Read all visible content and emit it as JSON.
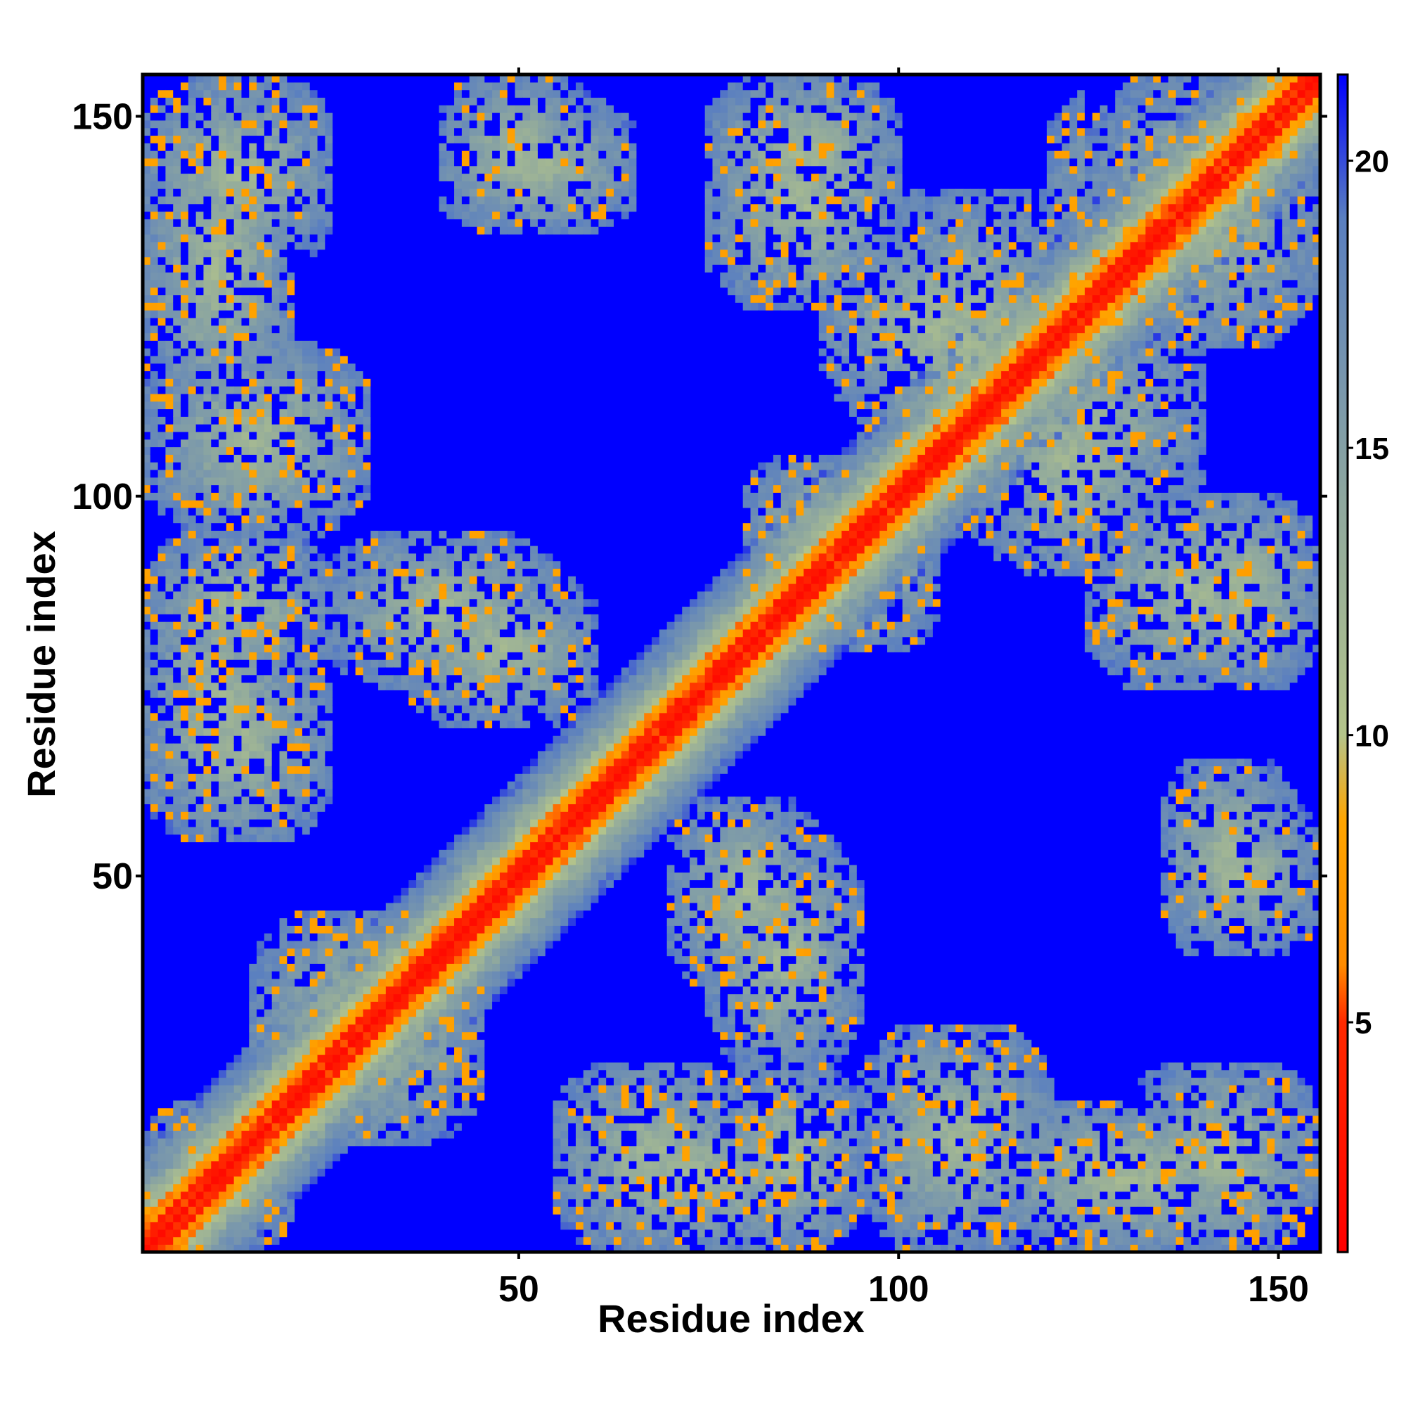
{
  "chart_data": {
    "type": "heatmap",
    "title": "",
    "xlabel": "Residue index",
    "ylabel": "Residue index",
    "xlim": [
      1,
      155
    ],
    "ylim": [
      1,
      155
    ],
    "x_ticks": [
      50,
      100,
      150
    ],
    "y_ticks": [
      50,
      100,
      150
    ],
    "n_residues": 155,
    "grid": false,
    "colorbar": {
      "position": "right",
      "range": [
        1,
        21.5
      ],
      "ticks": [
        5,
        10,
        15,
        20
      ],
      "colors": [
        "#ff0000",
        "#ff2a00",
        "#ff8c00",
        "#ffa500",
        "#b4c48a",
        "#8fa89e",
        "#5a7fc0",
        "#0000ff"
      ],
      "stops": [
        1,
        5,
        6,
        8.5,
        10,
        14,
        19,
        21.5
      ]
    },
    "value_model": "CA distance map (Angstrom), symmetric; values capped at ~21; red along diagonal (near contacts), orange/green in contact patches, blue = far",
    "diagonal": {
      "width": 3,
      "band_green_width": 12
    },
    "contact_regions": [
      {
        "x": [
          1,
          20
        ],
        "y": [
          1,
          20
        ]
      },
      {
        "x": [
          1,
          20
        ],
        "y": [
          55,
          90
        ]
      },
      {
        "x": [
          1,
          20
        ],
        "y": [
          110,
          150
        ]
      },
      {
        "x": [
          15,
          45
        ],
        "y": [
          15,
          45
        ]
      },
      {
        "x": [
          25,
          55
        ],
        "y": [
          75,
          95
        ]
      },
      {
        "x": [
          40,
          65
        ],
        "y": [
          135,
          152
        ]
      },
      {
        "x": [
          55,
          80
        ],
        "y": [
          1,
          25
        ]
      },
      {
        "x": [
          70,
          90
        ],
        "y": [
          35,
          60
        ]
      },
      {
        "x": [
          75,
          95
        ],
        "y": [
          1,
          25
        ]
      },
      {
        "x": [
          75,
          100
        ],
        "y": [
          125,
          152
        ]
      },
      {
        "x": [
          80,
          100
        ],
        "y": [
          85,
          105
        ]
      },
      {
        "x": [
          95,
          120
        ],
        "y": [
          1,
          30
        ]
      },
      {
        "x": [
          95,
          125
        ],
        "y": [
          100,
          140
        ]
      },
      {
        "x": [
          110,
          135
        ],
        "y": [
          90,
          120
        ]
      },
      {
        "x": [
          130,
          155
        ],
        "y": [
          1,
          25
        ]
      },
      {
        "x": [
          135,
          155
        ],
        "y": [
          40,
          60
        ]
      },
      {
        "x": [
          135,
          155
        ],
        "y": [
          75,
          100
        ]
      },
      {
        "x": [
          125,
          155
        ],
        "y": [
          120,
          155
        ]
      }
    ]
  }
}
